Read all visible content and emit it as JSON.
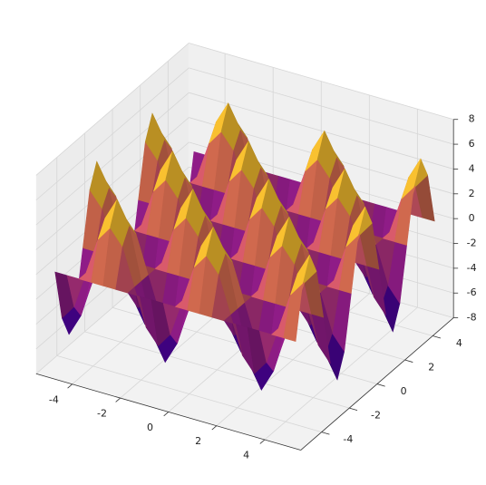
{
  "chart_data": {
    "type": "surface",
    "x": [
      -5,
      -4.5,
      -4,
      -3.5,
      -3,
      -2.5,
      -2,
      -1.5,
      -1,
      -0.5,
      0,
      0.5,
      1,
      1.5,
      2,
      2.5,
      3,
      3.5,
      4,
      4.5,
      5
    ],
    "y": [
      -5,
      -4.5,
      -4,
      -3.5,
      -3,
      -2.5,
      -2,
      -1.5,
      -1,
      -0.5,
      0,
      0.5,
      1,
      1.5,
      2,
      2.5,
      3,
      3.5,
      4,
      4.5,
      5
    ],
    "z": [
      [
        0,
        0,
        0,
        0,
        0,
        0,
        0,
        0,
        0,
        0,
        0,
        0,
        0,
        0,
        0,
        0,
        0,
        0,
        0,
        0,
        0
      ],
      [
        -4.2,
        -3,
        0,
        3,
        4.2,
        3,
        0,
        -3,
        -4.2,
        -3,
        0,
        3,
        4.2,
        3,
        0,
        -3,
        -4.2,
        -3,
        0,
        3,
        4.2
      ],
      [
        -6,
        -4.2,
        0,
        4.2,
        6,
        4.2,
        0,
        -4.2,
        -6,
        -4.2,
        0,
        4.2,
        6,
        4.2,
        0,
        -4.2,
        -6,
        -4.2,
        0,
        4.2,
        6
      ],
      [
        -4.2,
        -3,
        0,
        3,
        4.2,
        3,
        0,
        -3,
        -4.2,
        -3,
        0,
        3,
        4.2,
        3,
        0,
        -3,
        -4.2,
        -3,
        0,
        3,
        4.2
      ],
      [
        0,
        0,
        0,
        0,
        0,
        0,
        0,
        0,
        0,
        0,
        0,
        0,
        0,
        0,
        0,
        0,
        0,
        0,
        0,
        0,
        0
      ],
      [
        4.2,
        3,
        0,
        -3,
        -4.2,
        -3,
        0,
        3,
        4.2,
        3,
        0,
        -3,
        -4.2,
        -3,
        0,
        3,
        4.2,
        3,
        0,
        -3,
        -4.2
      ],
      [
        6,
        4.2,
        0,
        -4.2,
        -6,
        -4.2,
        0,
        4.2,
        6,
        4.2,
        0,
        -4.2,
        -6,
        -4.2,
        0,
        4.2,
        6,
        4.2,
        0,
        -4.2,
        -6
      ],
      [
        4.2,
        3,
        0,
        -3,
        -4.2,
        -3,
        0,
        3,
        4.2,
        3,
        0,
        -3,
        -4.2,
        -3,
        0,
        3,
        4.2,
        3,
        0,
        -3,
        -4.2
      ],
      [
        0,
        0,
        0,
        0,
        0,
        0,
        0,
        0,
        0,
        0,
        0,
        0,
        0,
        0,
        0,
        0,
        0,
        0,
        0,
        0,
        0
      ],
      [
        -4.2,
        -3,
        0,
        3,
        4.2,
        3,
        0,
        -3,
        -4.2,
        -3,
        0,
        3,
        4.2,
        3,
        0,
        -3,
        -4.2,
        -3,
        0,
        3,
        4.2
      ],
      [
        -6,
        -4.2,
        0,
        4.2,
        6,
        4.2,
        0,
        -4.2,
        -6,
        -4.2,
        0,
        4.2,
        6,
        4.2,
        0,
        -4.2,
        -6,
        -4.2,
        0,
        4.2,
        6
      ],
      [
        -4.2,
        -3,
        0,
        3,
        4.2,
        3,
        0,
        -3,
        -4.2,
        -3,
        0,
        3,
        4.2,
        3,
        0,
        -3,
        -4.2,
        -3,
        0,
        3,
        4.2
      ],
      [
        0,
        0,
        0,
        0,
        0,
        0,
        0,
        0,
        0,
        0,
        0,
        0,
        0,
        0,
        0,
        0,
        0,
        0,
        0,
        0,
        0
      ],
      [
        4.2,
        3,
        0,
        -3,
        -4.2,
        -3,
        0,
        3,
        4.2,
        3,
        0,
        -3,
        -4.2,
        -3,
        0,
        3,
        4.2,
        3,
        0,
        -3,
        -4.2
      ],
      [
        6,
        4.2,
        0,
        -4.2,
        -6,
        -4.2,
        0,
        4.2,
        6,
        4.2,
        0,
        -4.2,
        -6,
        -4.2,
        0,
        4.2,
        6,
        4.2,
        0,
        -4.2,
        -6
      ],
      [
        4.2,
        3,
        0,
        -3,
        -4.2,
        -3,
        0,
        3,
        4.2,
        3,
        0,
        -3,
        -4.2,
        -3,
        0,
        3,
        4.2,
        3,
        0,
        -3,
        -4.2
      ],
      [
        0,
        0,
        0,
        0,
        0,
        0,
        0,
        0,
        0,
        0,
        0,
        0,
        0,
        0,
        0,
        0,
        0,
        0,
        0,
        0,
        0
      ],
      [
        -4.2,
        -3,
        0,
        3,
        4.2,
        3,
        0,
        -3,
        -4.2,
        -3,
        0,
        3,
        4.2,
        3,
        0,
        -3,
        -4.2,
        -3,
        0,
        3,
        4.2
      ],
      [
        -6,
        -4.2,
        0,
        4.2,
        6,
        4.2,
        0,
        -4.2,
        -6,
        -4.2,
        0,
        4.2,
        6,
        4.2,
        0,
        -4.2,
        -6,
        -4.2,
        0,
        4.2,
        6
      ],
      [
        -4.2,
        -3,
        0,
        3,
        4.2,
        3,
        0,
        -3,
        -4.2,
        -3,
        0,
        3,
        4.2,
        3,
        0,
        -3,
        -4.2,
        -3,
        0,
        3,
        4.2
      ],
      [
        0,
        0,
        0,
        0,
        0,
        0,
        0,
        0,
        0,
        0,
        0,
        0,
        0,
        0,
        0,
        0,
        0,
        0,
        0,
        0,
        0
      ]
    ],
    "xlim": [
      -5.5,
      5.5
    ],
    "ylim": [
      -5.5,
      5.5
    ],
    "zlim": [
      -8,
      8
    ],
    "xticks": [
      -4,
      -2,
      0,
      2,
      4
    ],
    "yticks": [
      -4,
      -2,
      0,
      2,
      4
    ],
    "zticks": [
      -8,
      -6,
      -4,
      -2,
      0,
      2,
      4,
      6,
      8
    ],
    "colormap": [
      "#0d0887",
      "#6a00a8",
      "#b12a90",
      "#e16462",
      "#fca636",
      "#f0f921"
    ],
    "grid": true
  }
}
